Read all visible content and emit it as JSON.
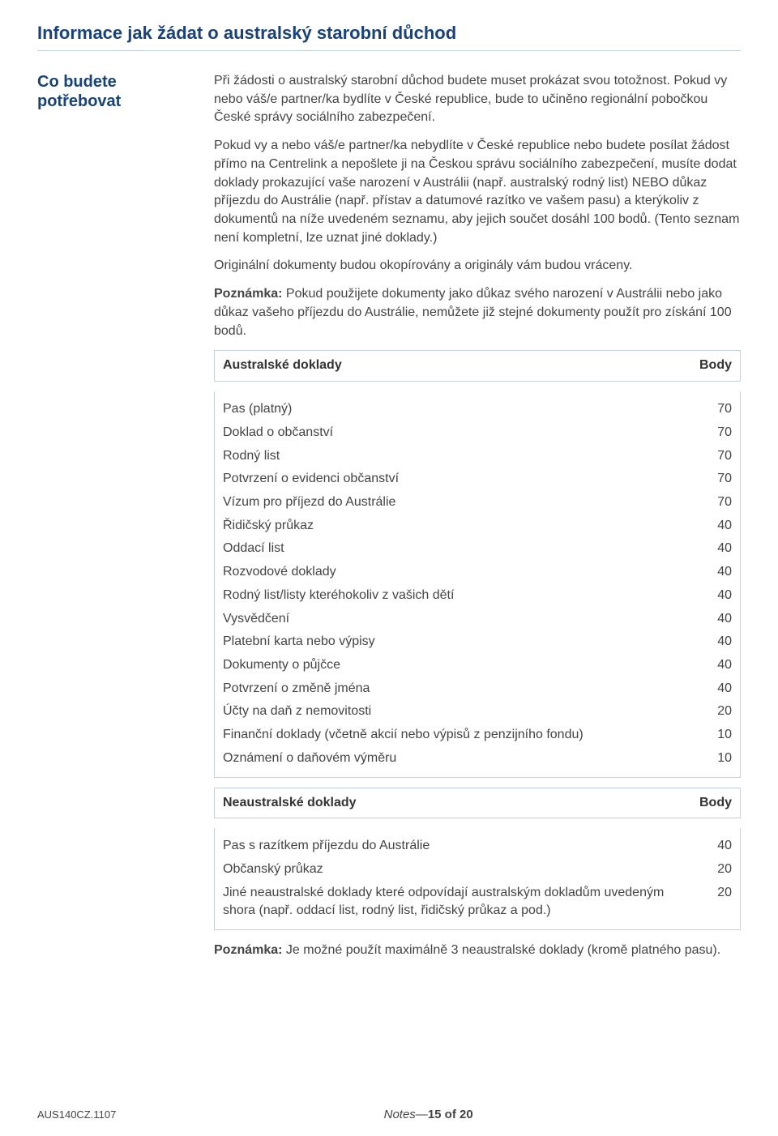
{
  "colors": {
    "heading": "#19427a",
    "border": "#c5d0dd",
    "text": "#444444",
    "background": "#ffffff"
  },
  "page_title": "Informace jak žádat o australský starobní důchod",
  "side_heading": "Co budete potřebovat",
  "para1": "Při žádosti o australský starobní důchod budete muset prokázat svou totožnost. Pokud vy nebo váš/e partner/ka bydlíte v České republice, bude to učiněno regionální pobočkou České správy sociálního zabezpečení.",
  "para2": "Pokud vy a nebo váš/e partner/ka nebydlíte v České republice nebo budete posílat žádost přímo na Centrelink a nepošlete ji na Českou správu sociálního zabezpečení, musíte dodat doklady prokazující vaše narození v Austrálii (např. australský rodný list) NEBO důkaz příjezdu do Austrálie (např. přístav a datumové razítko ve vašem pasu) a kterýkoliv z dokumentů na níže uvedeném seznamu, aby jejich součet dosáhl 100 bodů. (Tento seznam není kompletní, lze uznat jiné doklady.)",
  "para3": "Originální dokumenty budou okopírovány a originály vám budou vráceny.",
  "note_label": "Poznámka:",
  "note1_text": " Pokud použijete dokumenty jako důkaz svého narození v Austrálii nebo jako důkaz vašeho příjezdu do Austrálie, nemůžete již stejné dokumenty použít pro získání 100 bodů.",
  "table1": {
    "header_left": "Australské doklady",
    "header_right": "Body",
    "rows": [
      {
        "label": "Pas (platný)",
        "pts": "70"
      },
      {
        "label": "Doklad o občanství",
        "pts": "70"
      },
      {
        "label": "Rodný list",
        "pts": "70"
      },
      {
        "label": "Potvrzení o evidenci občanství",
        "pts": "70"
      },
      {
        "label": "Vízum pro příjezd do Austrálie",
        "pts": "70"
      },
      {
        "label": "Řidičský průkaz",
        "pts": "40"
      },
      {
        "label": "Oddací list",
        "pts": "40"
      },
      {
        "label": "Rozvodové doklady",
        "pts": "40"
      },
      {
        "label": "Rodný list/listy kteréhokoliv z vašich dětí",
        "pts": "40"
      },
      {
        "label": "Vysvědčení",
        "pts": "40"
      },
      {
        "label": "Platební karta nebo výpisy",
        "pts": "40"
      },
      {
        "label": "Dokumenty o půjčce",
        "pts": "40"
      },
      {
        "label": "Potvrzení o změně jména",
        "pts": "40"
      },
      {
        "label": "Účty na daň z nemovitosti",
        "pts": "20"
      },
      {
        "label": "Finanční doklady (včetně akcií nebo výpisů z penzijního fondu)",
        "pts": "10"
      },
      {
        "label": "Oznámení o daňovém výměru",
        "pts": "10"
      }
    ]
  },
  "table2": {
    "header_left": "Neaustralské doklady",
    "header_right": "Body",
    "rows": [
      {
        "label": "Pas s razítkem příjezdu do Austrálie",
        "pts": "40"
      },
      {
        "label": "Občanský průkaz",
        "pts": "20"
      },
      {
        "label": "Jiné neaustralské doklady které odpovídají australským dokladům uvedeným shora (např. oddací list, rodný list, řidičský průkaz a pod.)",
        "pts": "20"
      }
    ]
  },
  "note2_text": " Je možné použít maximálně 3 neaustralské doklady (kromě platného pasu).",
  "footer": {
    "left": "AUS140CZ.1107",
    "mid_prefix": "Notes—",
    "mid_page": "15 of 20"
  }
}
